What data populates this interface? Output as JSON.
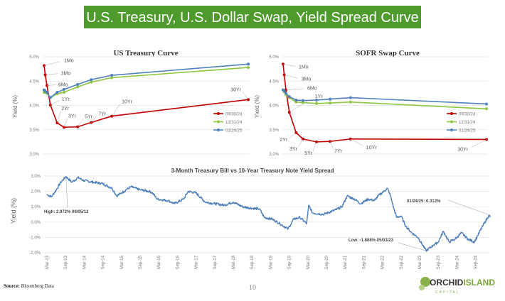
{
  "header": {
    "title": "U.S. Treasury, U.S. Dollar Swap, Yield Spread Curve",
    "color": "#4f9a2c"
  },
  "chart_data": [
    {
      "type": "line",
      "title": "US Treasury Curve",
      "ylabel": "Yield (%)",
      "ylim": [
        3.0,
        5.0
      ],
      "yticks": [
        "5.0%",
        "4.5%",
        "4.0%",
        "3.5%",
        "3.0%"
      ],
      "grid": true,
      "legend": "right",
      "maturities": [
        "1Mo",
        "3Mo",
        "6Mo",
        "1Yr",
        "2Yr",
        "3Yr",
        "5Yr",
        "7Yr",
        "10Yr",
        "30Yr"
      ],
      "x_years": [
        0.083,
        0.25,
        0.5,
        1,
        2,
        3,
        5,
        7,
        10,
        30
      ],
      "series": [
        {
          "name": "09/30/24",
          "color": "#c00000",
          "values": [
            4.82,
            4.63,
            4.41,
            4.01,
            3.64,
            3.55,
            3.56,
            3.65,
            3.78,
            4.12
          ]
        },
        {
          "name": "12/31/24",
          "color": "#8dc63f",
          "values": [
            4.27,
            4.27,
            4.25,
            4.16,
            4.24,
            4.27,
            4.38,
            4.48,
            4.57,
            4.78
          ]
        },
        {
          "name": "01/24/25",
          "color": "#4f81bd",
          "values": [
            4.32,
            4.3,
            4.27,
            4.16,
            4.27,
            4.33,
            4.43,
            4.53,
            4.62,
            4.85
          ]
        }
      ]
    },
    {
      "type": "line",
      "title": "SOFR Swap Curve",
      "ylabel": "Yield (%)",
      "ylim": [
        3.0,
        5.0
      ],
      "yticks": [
        "5.0%",
        "4.5%",
        "4.0%",
        "3.5%",
        "3.0%"
      ],
      "grid": true,
      "legend": "right",
      "maturities": [
        "1Mo",
        "3Mo",
        "6Mo",
        "1Yr",
        "2Yr",
        "3Yr",
        "5Yr",
        "7Yr",
        "10Yr",
        "30Yr"
      ],
      "x_years": [
        0.083,
        0.25,
        0.5,
        1,
        2,
        3,
        5,
        7,
        10,
        30
      ],
      "series": [
        {
          "name": "09/30/24",
          "color": "#c00000",
          "values": [
            4.85,
            4.63,
            4.32,
            3.86,
            3.44,
            3.31,
            3.25,
            3.26,
            3.31,
            3.3
          ]
        },
        {
          "name": "12/31/24",
          "color": "#8dc63f",
          "values": [
            4.32,
            4.28,
            4.22,
            4.16,
            4.07,
            4.06,
            4.04,
            4.05,
            4.07,
            3.93
          ]
        },
        {
          "name": "01/24/25",
          "color": "#4f81bd",
          "values": [
            4.32,
            4.3,
            4.25,
            4.18,
            4.11,
            4.1,
            4.11,
            4.13,
            4.16,
            4.03
          ]
        }
      ]
    },
    {
      "type": "line",
      "title": "3-Month Treasury Bill vs 10-Year Treasury Note Yield Spread",
      "ylabel": "Yield (%)",
      "ylim": [
        -2.0,
        3.0
      ],
      "yticks": [
        "3.0%",
        "2.0%",
        "1.0%",
        "0.0%",
        "-1.0%",
        "-2.0%"
      ],
      "xticks": [
        "Mar-13",
        "Sep-13",
        "Mar-14",
        "Sep-14",
        "Mar-15",
        "Sep-15",
        "Mar-16",
        "Sep-16",
        "Mar-17",
        "Sep-17",
        "Mar-18",
        "Sep-18",
        "Mar-19",
        "Sep-19",
        "Mar-20",
        "Sep-20",
        "Mar-21",
        "Sep-21",
        "Mar-22",
        "Sep-22",
        "Mar-23",
        "Sep-23",
        "Mar-24",
        "Sep-24"
      ],
      "grid": true,
      "color": "#4a7ebb",
      "annotations": {
        "high": "High: 2.972% 09/05/13",
        "low": "Low: -1.868% 05/03/23",
        "last": "01/24/25: 0.312%"
      },
      "points": [
        [
          "2013-03-01",
          1.8
        ],
        [
          "2013-04-15",
          1.65
        ],
        [
          "2013-06-01",
          2.1
        ],
        [
          "2013-07-15",
          2.6
        ],
        [
          "2013-09-05",
          2.97
        ],
        [
          "2013-11-01",
          2.6
        ],
        [
          "2014-01-01",
          2.9
        ],
        [
          "2014-03-01",
          2.7
        ],
        [
          "2014-06-01",
          2.6
        ],
        [
          "2014-09-01",
          2.5
        ],
        [
          "2014-12-01",
          2.2
        ],
        [
          "2015-01-15",
          1.7
        ],
        [
          "2015-03-01",
          1.9
        ],
        [
          "2015-06-01",
          2.3
        ],
        [
          "2015-09-01",
          2.1
        ],
        [
          "2015-12-01",
          2.0
        ],
        [
          "2016-01-01",
          1.9
        ],
        [
          "2016-02-15",
          1.5
        ],
        [
          "2016-06-01",
          1.4
        ],
        [
          "2016-08-01",
          1.2
        ],
        [
          "2016-11-01",
          1.5
        ],
        [
          "2016-12-15",
          2.0
        ],
        [
          "2017-03-01",
          1.9
        ],
        [
          "2017-06-01",
          1.3
        ],
        [
          "2017-09-01",
          1.2
        ],
        [
          "2017-12-01",
          1.1
        ],
        [
          "2018-03-01",
          1.3
        ],
        [
          "2018-06-01",
          1.0
        ],
        [
          "2018-09-01",
          0.9
        ],
        [
          "2018-11-15",
          0.85
        ],
        [
          "2019-01-01",
          0.3
        ],
        [
          "2019-03-15",
          0.2
        ],
        [
          "2019-06-01",
          -0.1
        ],
        [
          "2019-08-20",
          -0.45
        ],
        [
          "2019-10-15",
          0.2
        ],
        [
          "2019-12-15",
          0.3
        ],
        [
          "2020-02-20",
          -0.1
        ],
        [
          "2020-03-10",
          1.1
        ],
        [
          "2020-04-15",
          0.6
        ],
        [
          "2020-08-01",
          0.5
        ],
        [
          "2020-12-01",
          0.8
        ],
        [
          "2021-02-01",
          1.0
        ],
        [
          "2021-03-20",
          1.7
        ],
        [
          "2021-06-01",
          1.5
        ],
        [
          "2021-08-01",
          1.2
        ],
        [
          "2021-10-15",
          1.5
        ],
        [
          "2021-12-15",
          1.4
        ],
        [
          "2022-01-20",
          1.7
        ],
        [
          "2022-03-15",
          2.0
        ],
        [
          "2022-04-20",
          2.2
        ],
        [
          "2022-05-20",
          1.7
        ],
        [
          "2022-06-20",
          0.9
        ],
        [
          "2022-07-20",
          0.3
        ],
        [
          "2022-09-01",
          0.4
        ],
        [
          "2022-10-20",
          -0.3
        ],
        [
          "2022-12-15",
          -0.7
        ],
        [
          "2023-02-15",
          -1.0
        ],
        [
          "2023-05-03",
          -1.87
        ],
        [
          "2023-07-15",
          -1.5
        ],
        [
          "2023-09-01",
          -1.3
        ],
        [
          "2023-10-20",
          -0.6
        ],
        [
          "2023-12-15",
          -1.3
        ],
        [
          "2024-02-15",
          -1.1
        ],
        [
          "2024-04-15",
          -0.7
        ],
        [
          "2024-06-15",
          -1.1
        ],
        [
          "2024-08-20",
          -1.3
        ],
        [
          "2024-09-20",
          -0.9
        ],
        [
          "2024-11-15",
          -0.2
        ],
        [
          "2025-01-10",
          0.45
        ],
        [
          "2025-01-24",
          0.31
        ]
      ]
    }
  ],
  "footer": {
    "source_label": "Source:",
    "source_text": "Bloomberg Data",
    "page_number": "10",
    "logo_text_1": "ORCHID",
    "logo_text_2": "ISLAND",
    "logo_sub": "CAPITAL"
  }
}
